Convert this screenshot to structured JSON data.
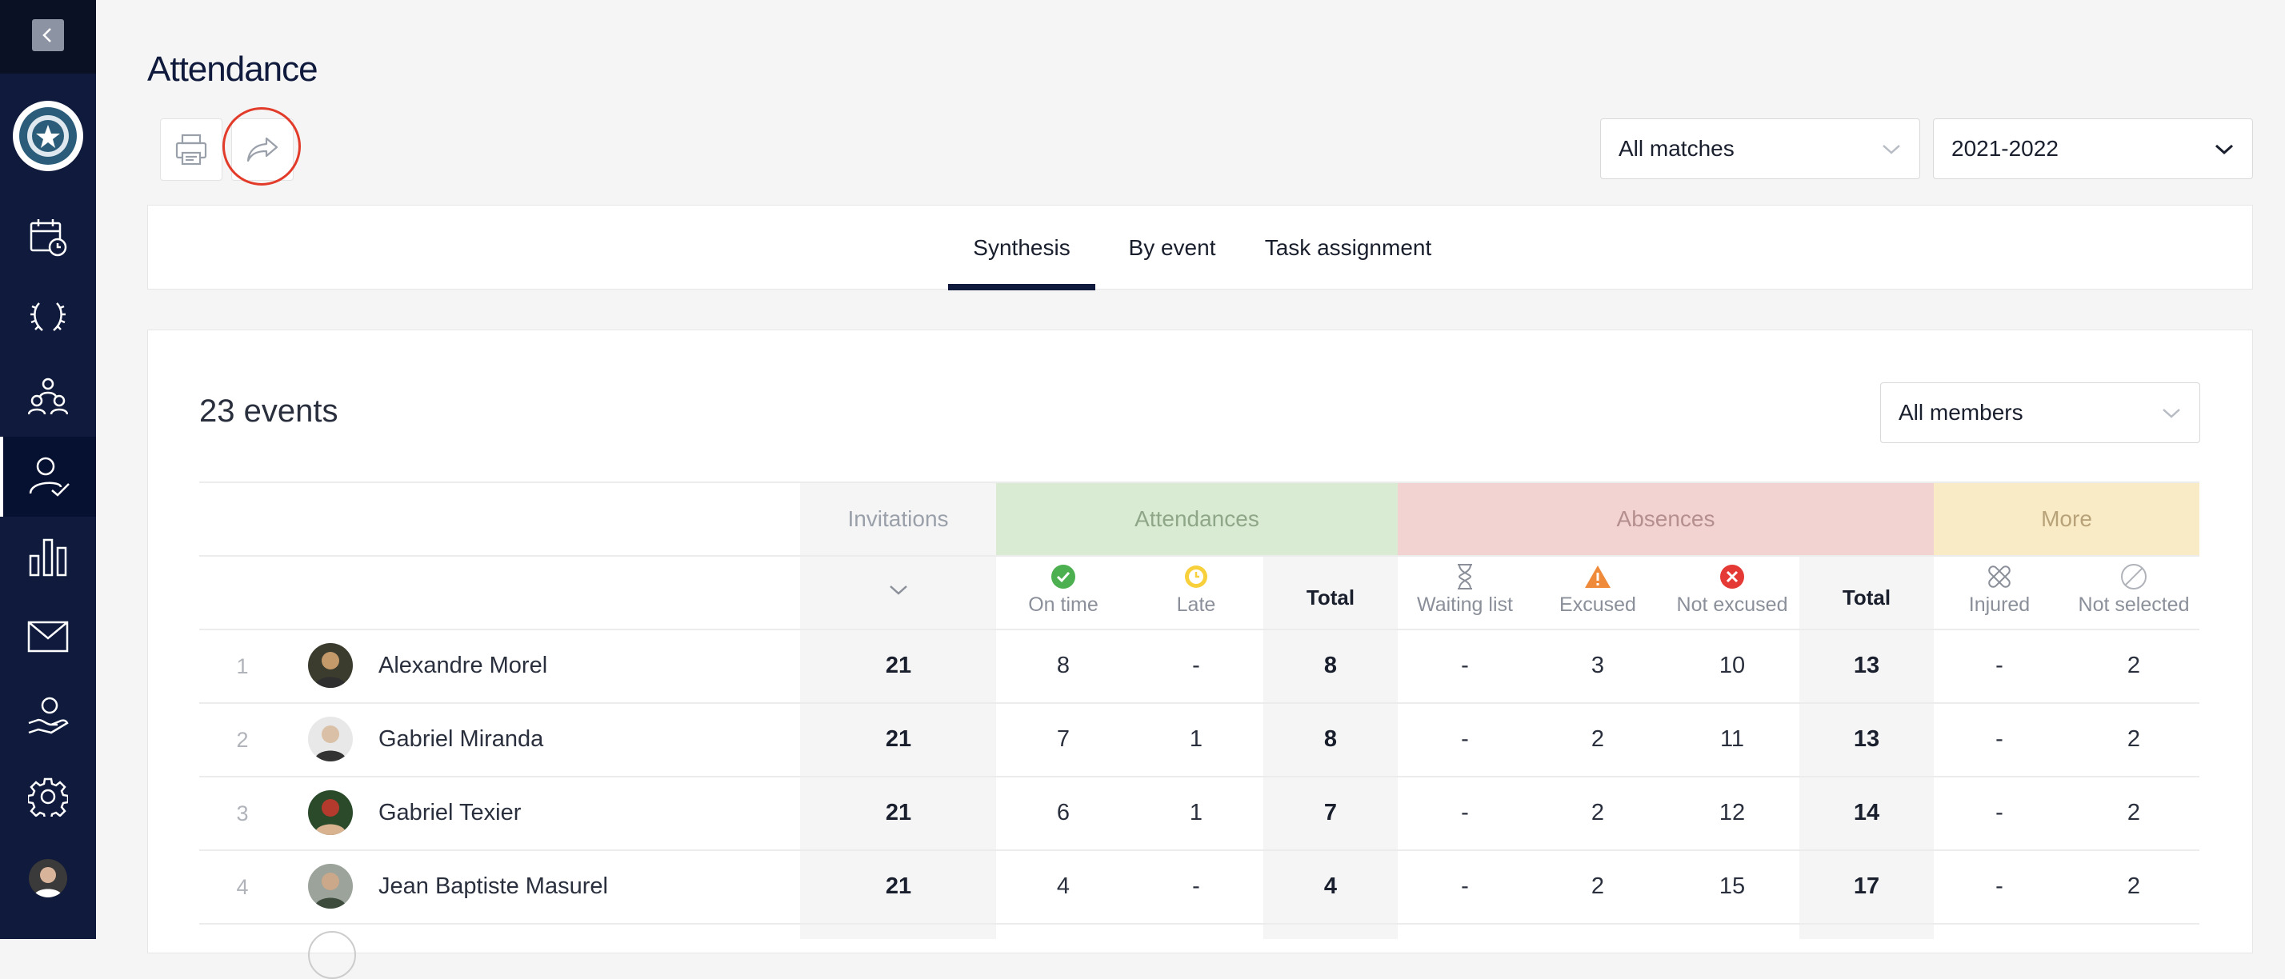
{
  "sidebar": {
    "items": [
      {
        "icon": "calendar-clock-icon"
      },
      {
        "icon": "laurel-wreath-icon"
      },
      {
        "icon": "team-icon"
      },
      {
        "icon": "user-check-icon",
        "active": true
      },
      {
        "icon": "bar-chart-icon"
      },
      {
        "icon": "mail-icon"
      },
      {
        "icon": "hand-giving-icon"
      },
      {
        "icon": "gear-icon"
      }
    ]
  },
  "header": {
    "title": "Attendance",
    "filter_matches": "All matches",
    "filter_season": "2021-2022"
  },
  "tabs": [
    {
      "label": "Synthesis",
      "active": true
    },
    {
      "label": "By event"
    },
    {
      "label": "Task assignment"
    }
  ],
  "summary": {
    "events_count": "23 events",
    "members_filter": "All members"
  },
  "table": {
    "groups": {
      "invitations": "Invitations",
      "attendances": "Attendances",
      "absences": "Absences",
      "more": "More"
    },
    "columns": {
      "on_time": "On time",
      "late": "Late",
      "att_total": "Total",
      "waiting_list": "Waiting list",
      "excused": "Excused",
      "not_excused": "Not excused",
      "abs_total": "Total",
      "injured": "Injured",
      "not_selected": "Not selected"
    },
    "rows": [
      {
        "num": "1",
        "name": "Alexandre Morel",
        "invitations": "21",
        "on_time": "8",
        "late": "-",
        "att_total": "8",
        "waiting_list": "-",
        "excused": "3",
        "not_excused": "10",
        "abs_total": "13",
        "injured": "-",
        "not_selected": "2"
      },
      {
        "num": "2",
        "name": "Gabriel Miranda",
        "invitations": "21",
        "on_time": "7",
        "late": "1",
        "att_total": "8",
        "waiting_list": "-",
        "excused": "2",
        "not_excused": "11",
        "abs_total": "13",
        "injured": "-",
        "not_selected": "2"
      },
      {
        "num": "3",
        "name": "Gabriel Texier",
        "invitations": "21",
        "on_time": "6",
        "late": "1",
        "att_total": "7",
        "waiting_list": "-",
        "excused": "2",
        "not_excused": "12",
        "abs_total": "14",
        "injured": "-",
        "not_selected": "2"
      },
      {
        "num": "4",
        "name": "Jean Baptiste Masurel",
        "invitations": "21",
        "on_time": "4",
        "late": "-",
        "att_total": "4",
        "waiting_list": "-",
        "excused": "2",
        "not_excused": "15",
        "abs_total": "17",
        "injured": "-",
        "not_selected": "2"
      }
    ]
  },
  "colors": {
    "sidebar": "#0f1a3c",
    "attendances_bg": "#d9ecd3",
    "absences_bg": "#f2d3d2",
    "more_bg": "#f9ebc5",
    "highlight": "#e23b2a"
  }
}
